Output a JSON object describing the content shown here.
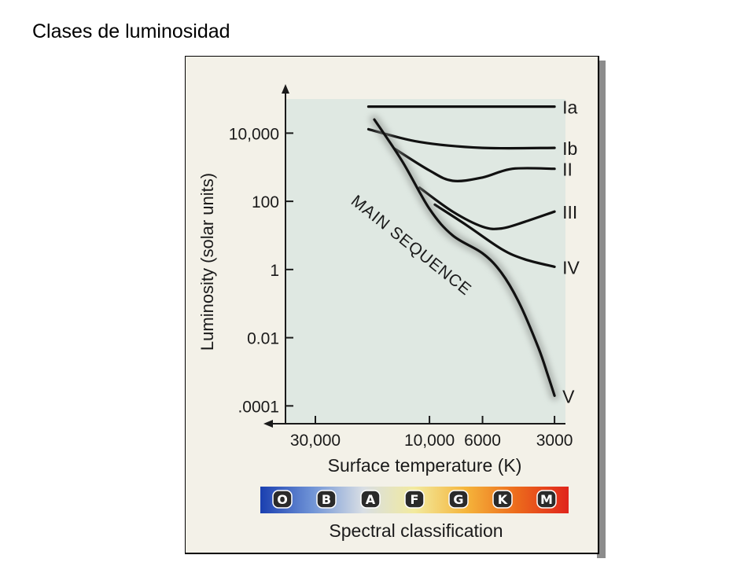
{
  "page": {
    "title": "Clases de luminosidad"
  },
  "colors": {
    "plot_background": "#dfe8e2",
    "frame_background": "#f3f1e8",
    "curve": "#111111"
  },
  "chart_data": {
    "type": "line",
    "title": "",
    "xlabel": "Surface temperature (K)",
    "ylabel": "Luminosity (solar units)",
    "x_scale": "reversed-log",
    "y_scale": "log",
    "xlim": [
      40000,
      2700
    ],
    "ylim": [
      3e-05,
      100000
    ],
    "x_ticks": [
      {
        "value": 30000,
        "label": "30,000"
      },
      {
        "value": 10000,
        "label": "10,000"
      },
      {
        "value": 6000,
        "label": "6000"
      },
      {
        "value": 3000,
        "label": "3000"
      }
    ],
    "y_ticks": [
      {
        "value": 10000,
        "label": "10,000"
      },
      {
        "value": 100,
        "label": "100"
      },
      {
        "value": 1,
        "label": "1"
      },
      {
        "value": 0.01,
        "label": "0.01"
      },
      {
        "value": 0.0001,
        "label": ".0001"
      }
    ],
    "grid": false,
    "series": [
      {
        "name": "Ia",
        "label": "Ia",
        "x": [
          18000,
          3000
        ],
        "y": [
          60000,
          60000
        ]
      },
      {
        "name": "Ib",
        "label": "Ib",
        "x": [
          18000,
          11000,
          6000,
          3000
        ],
        "y": [
          13000,
          5500,
          3700,
          3700
        ]
      },
      {
        "name": "II",
        "label": "II",
        "x": [
          14000,
          10000,
          8000,
          6000,
          4500,
          3000
        ],
        "y": [
          3500,
          800,
          400,
          500,
          900,
          900
        ]
      },
      {
        "name": "III",
        "label": "III",
        "x": [
          11000,
          8000,
          6000,
          5000,
          4000,
          3000
        ],
        "y": [
          250,
          50,
          18,
          16,
          25,
          50
        ]
      },
      {
        "name": "IV",
        "label": "IV",
        "x": [
          9500,
          7000,
          5000,
          4000,
          3000
        ],
        "y": [
          80,
          20,
          4,
          2,
          1.2
        ]
      },
      {
        "name": "V",
        "label": "V",
        "series_title": "MAIN SEQUENCE",
        "x": [
          17000,
          13000,
          10000,
          8000,
          6000,
          5000,
          4200,
          3500,
          3200,
          3000
        ],
        "y": [
          25000,
          1500,
          60,
          10,
          3,
          0.8,
          0.1,
          0.005,
          0.0008,
          0.0002
        ]
      }
    ],
    "spectral_classification": {
      "title": "Spectral classification",
      "classes": [
        "O",
        "B",
        "A",
        "F",
        "G",
        "K",
        "M"
      ],
      "gradient": [
        "#1a3fb0",
        "#6f93d6",
        "#d8dee4",
        "#f2ea9e",
        "#f5b53b",
        "#ec6a1c",
        "#e0251c"
      ]
    }
  }
}
